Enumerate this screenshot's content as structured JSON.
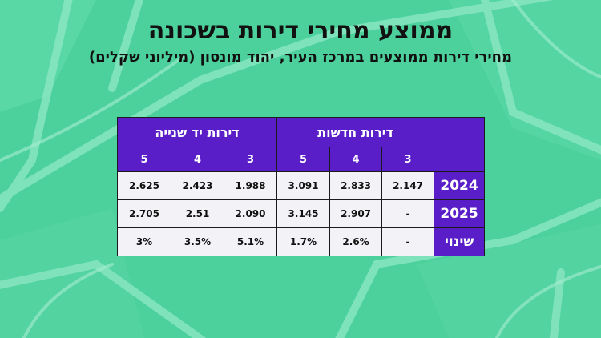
{
  "title": "ממוצע מחירי דירות בשכונה",
  "subtitle": "מחירי דירות ממוצעים במרכז העיר, יהוד מונסון (מיליוני שקלים)",
  "table": {
    "groups": [
      "דירות חדשות",
      "דירות יד שנייה"
    ],
    "rooms": [
      "3",
      "4",
      "5",
      "3",
      "4",
      "5"
    ],
    "rows": [
      {
        "label": "2024",
        "values": [
          "2.147",
          "2.833",
          "3.091",
          "1.988",
          "2.423",
          "2.625"
        ]
      },
      {
        "label": "2025",
        "values": [
          "-",
          "2.907",
          "3.145",
          "2.090",
          "2.51",
          "2.705"
        ]
      },
      {
        "label": "שינוי",
        "values": [
          "-",
          "2.6%",
          "1.7%",
          "5.1%",
          "3.5%",
          "3%"
        ]
      }
    ]
  },
  "colors": {
    "background": "#4fd3a0",
    "header": "#5a1ec8",
    "cell": "#f3f3f7"
  }
}
